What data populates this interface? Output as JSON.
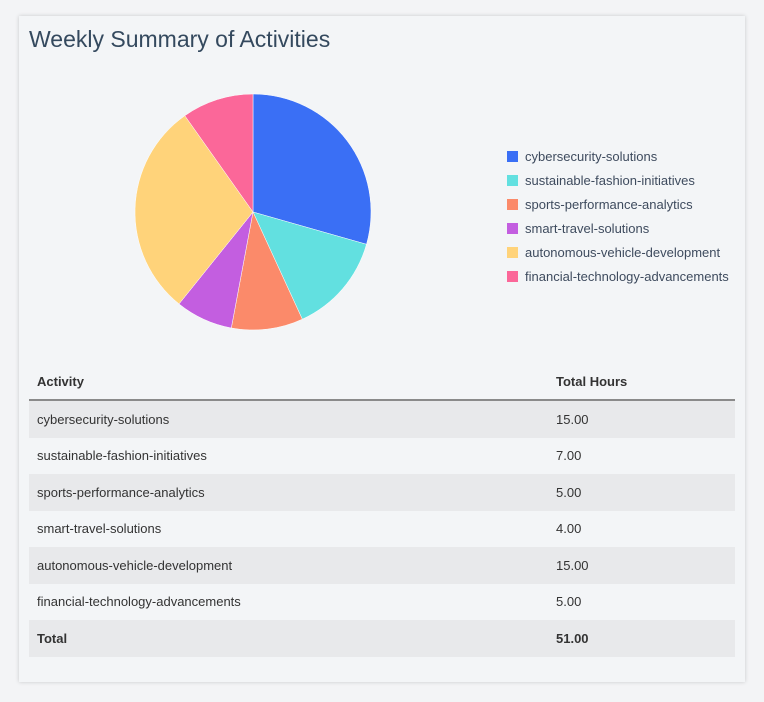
{
  "title": "Weekly Summary of Activities",
  "chart_data": {
    "type": "pie",
    "categories": [
      "cybersecurity-solutions",
      "sustainable-fashion-initiatives",
      "sports-performance-analytics",
      "smart-travel-solutions",
      "autonomous-vehicle-development",
      "financial-technology-advancements"
    ],
    "values": [
      15,
      7,
      5,
      4,
      15,
      5
    ],
    "colors": [
      "#3a6ff5",
      "#62e0e0",
      "#fb8a6a",
      "#c35ee0",
      "#ffd37a",
      "#fb6799"
    ],
    "legend_position": "right",
    "start": "top",
    "direction": "clockwise"
  },
  "table": {
    "headers": [
      "Activity",
      "Total Hours"
    ],
    "rows": [
      [
        "cybersecurity-solutions",
        "15.00"
      ],
      [
        "sustainable-fashion-initiatives",
        "7.00"
      ],
      [
        "sports-performance-analytics",
        "5.00"
      ],
      [
        "smart-travel-solutions",
        "4.00"
      ],
      [
        "autonomous-vehicle-development",
        "15.00"
      ],
      [
        "financial-technology-advancements",
        "5.00"
      ]
    ],
    "total": [
      "Total",
      "51.00"
    ]
  }
}
